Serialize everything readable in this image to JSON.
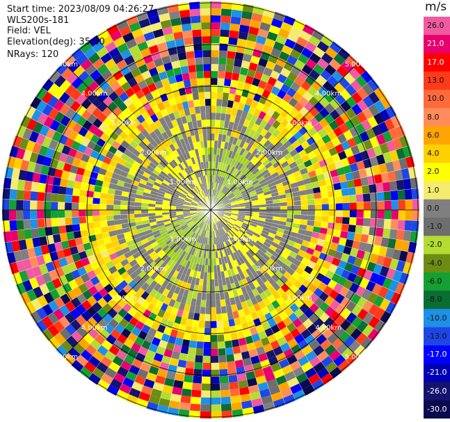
{
  "header": {
    "start_time": "Start time: 2023/08/09 04:26:27",
    "instrument": "WLS200s-181",
    "field": "Field: VEL",
    "elevation": "Elevation(deg): 35.30",
    "nrays": "NRays: 120"
  },
  "colorbar": {
    "unit": "m/s",
    "ticks": [
      "26.0",
      "21.0",
      "17.0",
      "13.0",
      "10.0",
      "8.0",
      "6.0",
      "4.0",
      "2.0",
      "1.0",
      "0.0",
      "-1.0",
      "-2.0",
      "-4.0",
      "-6.0",
      "-8.0",
      "-10.0",
      "-13.0",
      "-17.0",
      "-21.0",
      "-26.0",
      "-30.0"
    ],
    "colors": [
      "#f05aa0",
      "#e8006e",
      "#ff0000",
      "#ff3a1a",
      "#ff6a3a",
      "#ff8c5a",
      "#ffa500",
      "#ffd000",
      "#ffff00",
      "#f5eb6e",
      "#7f7f7f",
      "#6e6e6e",
      "#b4dc32",
      "#6e8c14",
      "#14a032",
      "#0a6e32",
      "#1e90e6",
      "#1e46e6",
      "#0000ff",
      "#0000b4",
      "#14146e",
      "#0a0a50"
    ]
  },
  "range_labels": [
    "1.00km",
    "2.00km",
    "3.00km",
    "4.00km",
    "5.00km"
  ]
}
